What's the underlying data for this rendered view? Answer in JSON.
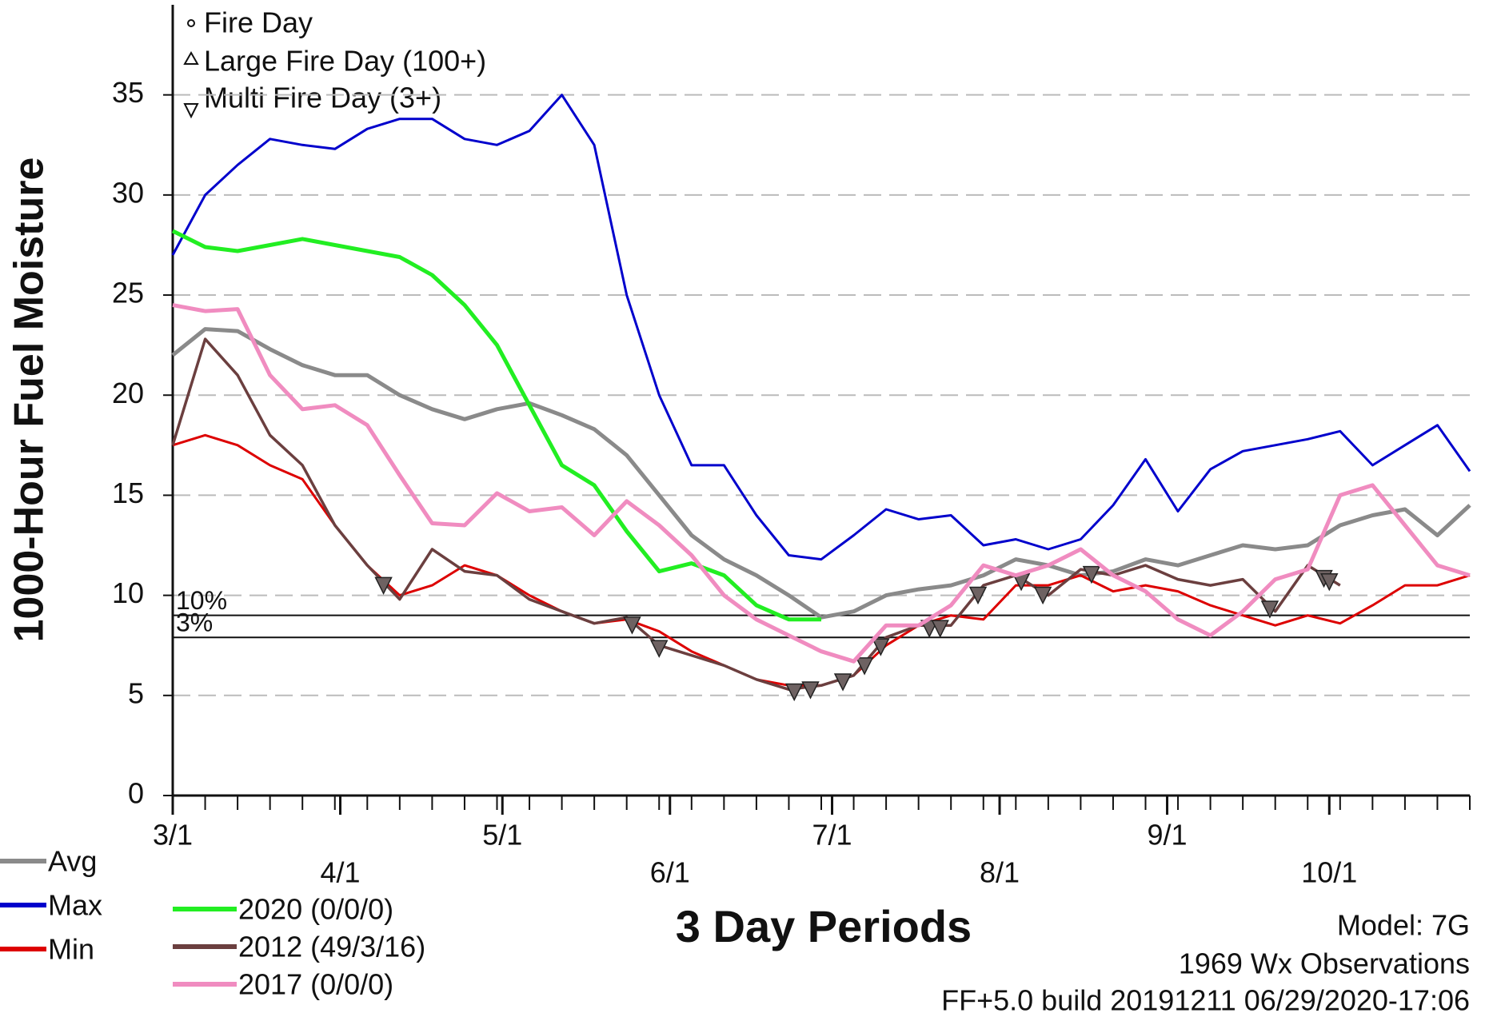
{
  "chart_data": {
    "type": "line",
    "y_label": "1000-Hour Fuel Moisture",
    "x_label": "3 Day Periods",
    "x": [
      0,
      6,
      12,
      18,
      24,
      30,
      36,
      42,
      48,
      54,
      60,
      66,
      72,
      78,
      84,
      90,
      96,
      102,
      108,
      114,
      120,
      126,
      132,
      138,
      144,
      150,
      156,
      162,
      168,
      174,
      180,
      186,
      192,
      198,
      204,
      210,
      216,
      222,
      228,
      234,
      240
    ],
    "xlim": [
      0,
      240
    ],
    "xticks": [
      {
        "value": 0,
        "label": "3/1"
      },
      {
        "value": 31,
        "label": "4/1"
      },
      {
        "value": 61,
        "label": "5/1"
      },
      {
        "value": 92,
        "label": "6/1"
      },
      {
        "value": 122,
        "label": "7/1"
      },
      {
        "value": 153,
        "label": "8/1"
      },
      {
        "value": 184,
        "label": "9/1"
      },
      {
        "value": 214,
        "label": "10/1"
      }
    ],
    "ylim": [
      0,
      39.5
    ],
    "yticks": [
      0,
      5,
      10,
      15,
      20,
      25,
      30,
      35
    ],
    "grid": true,
    "series": [
      {
        "name": "Avg",
        "color": "#8a8a8a",
        "values": [
          22,
          23.3,
          23.2,
          22.3,
          21.5,
          21,
          21,
          20,
          19.3,
          18.8,
          19.3,
          19.6,
          19,
          18.3,
          17,
          15,
          13,
          11.8,
          11,
          10,
          8.9,
          9.2,
          10,
          10.3,
          10.5,
          11,
          11.8,
          11.5,
          11,
          11.2,
          11.8,
          11.5,
          12,
          12.5,
          12.3,
          12.5,
          13.5,
          14,
          14.3,
          13,
          14.5
        ]
      },
      {
        "name": "Max",
        "color": "#0000cc",
        "values": [
          27,
          30,
          31.5,
          32.8,
          32.5,
          32.3,
          33.3,
          33.8,
          33.8,
          32.8,
          32.5,
          33.2,
          35,
          32.5,
          25,
          20,
          16.5,
          16.5,
          14,
          12,
          11.8,
          13,
          14.3,
          13.8,
          14,
          12.5,
          12.8,
          12.3,
          12.8,
          14.5,
          16.8,
          14.2,
          16.3,
          17.2,
          17.5,
          17.8,
          18.2,
          16.5,
          17.5,
          18.5,
          16.2
        ]
      },
      {
        "name": "Min",
        "color": "#dd0000",
        "values": [
          17.5,
          18,
          17.5,
          16.5,
          15.8,
          13.5,
          11.5,
          10,
          10.5,
          11.5,
          11,
          10,
          9.2,
          8.6,
          8.8,
          8.2,
          7.2,
          6.5,
          5.8,
          5.5,
          5.5,
          6,
          7.5,
          8.5,
          9,
          8.8,
          10.5,
          10.5,
          11,
          10.2,
          10.5,
          10.2,
          9.5,
          9,
          8.5,
          9,
          8.6,
          9.5,
          10.5,
          10.5,
          11
        ]
      },
      {
        "name": "2020 (0/0/0)",
        "color": "#22ee22",
        "values": [
          28.2,
          27.4,
          27.2,
          27.5,
          27.8,
          27.5,
          27.2,
          26.9,
          26,
          24.5,
          22.5,
          19.5,
          16.5,
          15.5,
          13.2,
          11.2,
          11.6,
          11,
          9.5,
          8.8,
          8.8,
          null,
          null,
          null,
          null,
          null,
          null,
          null,
          null,
          null,
          null,
          null,
          null,
          null,
          null,
          null,
          null,
          null,
          null,
          null,
          null
        ]
      },
      {
        "name": "2012 (49/3/16)",
        "color": "#6b3f3f",
        "values": [
          17.5,
          22.8,
          21,
          18,
          16.5,
          13.5,
          11.5,
          9.8,
          12.3,
          11.2,
          11,
          9.8,
          9.2,
          8.6,
          8.9,
          7.5,
          7,
          6.5,
          5.8,
          5.3,
          5.5,
          6,
          7.9,
          8.5,
          8.5,
          10.5,
          11,
          10,
          11.3,
          11,
          11.5,
          10.8,
          10.5,
          10.8,
          9.2,
          11.5,
          10.5,
          null,
          null,
          null,
          null
        ],
        "multi_fire_days": [
          39,
          85,
          90,
          115,
          118,
          124,
          128,
          131,
          140,
          142,
          149,
          157,
          161,
          170,
          203,
          213,
          214
        ]
      },
      {
        "name": "2017 (0/0/0)",
        "color": "#f08cc0",
        "values": [
          24.5,
          24.2,
          24.3,
          21,
          19.3,
          19.5,
          18.5,
          16,
          13.6,
          13.5,
          15.1,
          14.2,
          14.4,
          13,
          14.7,
          13.5,
          12,
          10,
          8.8,
          8,
          7.2,
          6.7,
          8.5,
          8.5,
          9.5,
          11.5,
          11,
          11.5,
          12.3,
          11,
          10.2,
          8.8,
          8,
          9.2,
          10.8,
          11.3,
          15,
          15.5,
          13.5,
          11.5,
          11
        ]
      }
    ],
    "percentile_lines": [
      {
        "label": "10%",
        "value": 9.0
      },
      {
        "label": "3%",
        "value": 7.9
      }
    ],
    "symbols": [
      "Fire Day",
      "Large Fire Day (100+)",
      "Multi Fire Day (3+)"
    ],
    "footer": [
      "Model: 7G",
      "1969 Wx Observations",
      "FF+5.0 build 20191211 06/29/2020-17:06"
    ]
  }
}
